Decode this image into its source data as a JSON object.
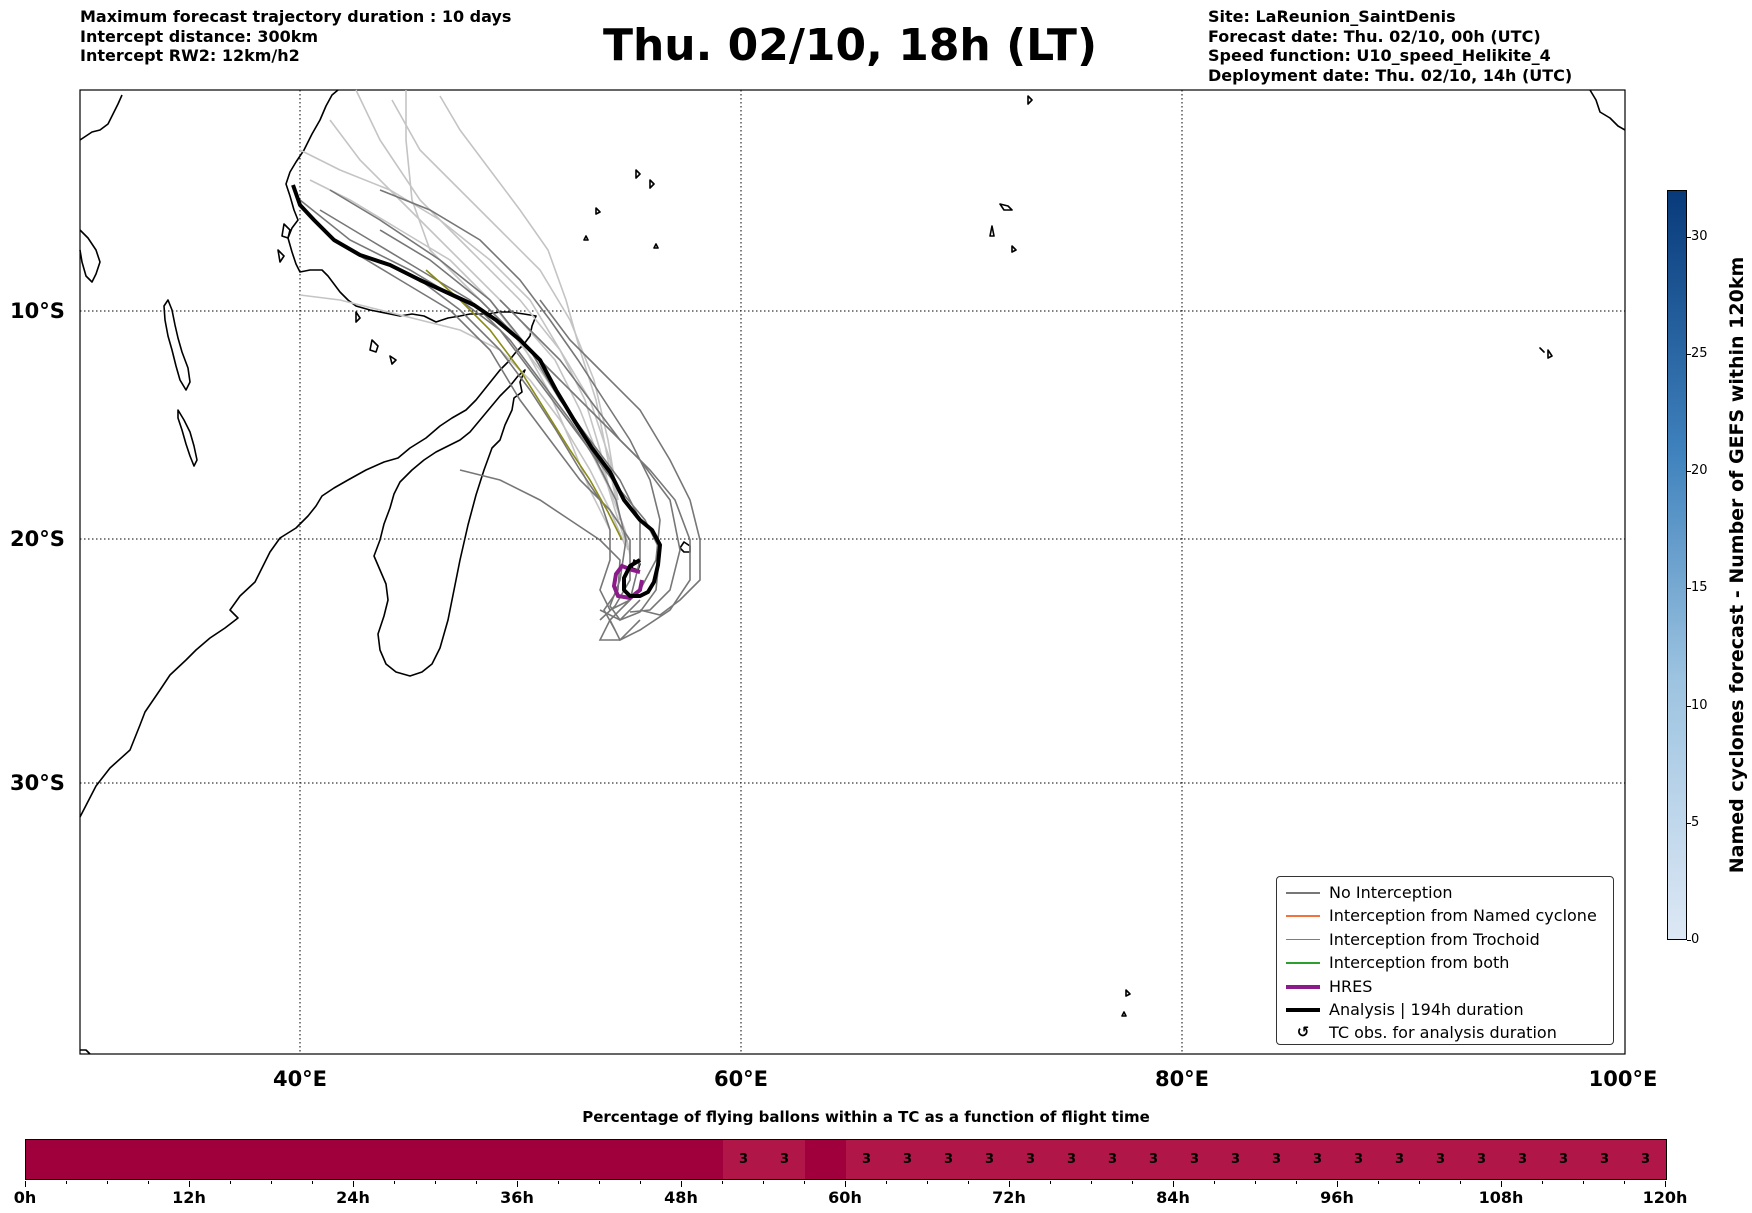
{
  "header": {
    "info_left": [
      "Maximum forecast trajectory duration : 10 days",
      "Intercept distance: 300km",
      "Intercept RW2: 12km/h2"
    ],
    "title": "Thu. 02/10, 18h (LT)",
    "info_right": [
      "Site: LaReunion_SaintDenis",
      "Forecast date: Thu. 02/10, 00h (UTC)",
      "Speed function: U10_speed_Helikite_4",
      "Deployment date: Thu. 02/10, 14h (UTC)"
    ]
  },
  "map": {
    "lat_labels": [
      "10°S",
      "20°S",
      "30°S"
    ],
    "lon_labels": [
      "40°E",
      "60°E",
      "80°E",
      "100°E"
    ],
    "colors": {
      "coast": "#000000",
      "no_interception": "#777777",
      "ensemble_light": "#c4c4c4",
      "interception_named_cyclone": "#f4713b",
      "interception_trochoid": "#8b8b18",
      "interception_both": "#2ca02c",
      "hres": "#8b1a8b",
      "analysis": "#000000"
    }
  },
  "legend": {
    "items": [
      {
        "label": "No Interception",
        "color": "#777777",
        "style": "thin"
      },
      {
        "label": "Interception from Named cyclone",
        "color": "#f4713b",
        "style": "thin"
      },
      {
        "label": "Interception from Trochoid",
        "color": "#8b8b18",
        "style": "thin"
      },
      {
        "label": "Interception from both",
        "color": "#2ca02c",
        "style": "thin"
      },
      {
        "label": "HRES",
        "color": "#8b1a8b",
        "style": "thick"
      },
      {
        "label": "Analysis | 194h duration",
        "color": "#000000",
        "style": "thick"
      },
      {
        "label": "TC obs. for analysis duration",
        "symbol": "↺",
        "style": "symbol"
      }
    ]
  },
  "colorbar": {
    "title": "Named cyclones forecast - Number of GEFS within 120km",
    "min": 0,
    "max": 32,
    "ticks": [
      "0",
      "5",
      "10",
      "15",
      "20",
      "25",
      "30"
    ],
    "color_low": "#dde8f5",
    "color_high": "#083a7a"
  },
  "strip": {
    "title": "Percentage of flying ballons within a TC as a function of flight time",
    "x_labels": [
      "0h",
      "12h",
      "24h",
      "36h",
      "48h",
      "60h",
      "72h",
      "84h",
      "96h",
      "108h",
      "120h"
    ],
    "x_max_hours": 120,
    "color_dark": "#a0003c",
    "color_light": "#b01648",
    "segments": [
      {
        "start_h": 0,
        "end_h": 51,
        "value": ""
      },
      {
        "start_h": 51,
        "end_h": 54,
        "value": "3"
      },
      {
        "start_h": 54,
        "end_h": 57,
        "value": "3"
      },
      {
        "start_h": 57,
        "end_h": 60,
        "value": ""
      },
      {
        "start_h": 60,
        "end_h": 63,
        "value": "3"
      },
      {
        "start_h": 63,
        "end_h": 66,
        "value": "3"
      },
      {
        "start_h": 66,
        "end_h": 69,
        "value": "3"
      },
      {
        "start_h": 69,
        "end_h": 72,
        "value": "3"
      },
      {
        "start_h": 72,
        "end_h": 75,
        "value": "3"
      },
      {
        "start_h": 75,
        "end_h": 78,
        "value": "3"
      },
      {
        "start_h": 78,
        "end_h": 81,
        "value": "3"
      },
      {
        "start_h": 81,
        "end_h": 84,
        "value": "3"
      },
      {
        "start_h": 84,
        "end_h": 87,
        "value": "3"
      },
      {
        "start_h": 87,
        "end_h": 90,
        "value": "3"
      },
      {
        "start_h": 90,
        "end_h": 93,
        "value": "3"
      },
      {
        "start_h": 93,
        "end_h": 96,
        "value": "3"
      },
      {
        "start_h": 96,
        "end_h": 99,
        "value": "3"
      },
      {
        "start_h": 99,
        "end_h": 102,
        "value": "3"
      },
      {
        "start_h": 102,
        "end_h": 105,
        "value": "3"
      },
      {
        "start_h": 105,
        "end_h": 108,
        "value": "3"
      },
      {
        "start_h": 108,
        "end_h": 111,
        "value": "3"
      },
      {
        "start_h": 111,
        "end_h": 114,
        "value": "3"
      },
      {
        "start_h": 114,
        "end_h": 117,
        "value": "3"
      },
      {
        "start_h": 117,
        "end_h": 120,
        "value": "3"
      }
    ]
  }
}
